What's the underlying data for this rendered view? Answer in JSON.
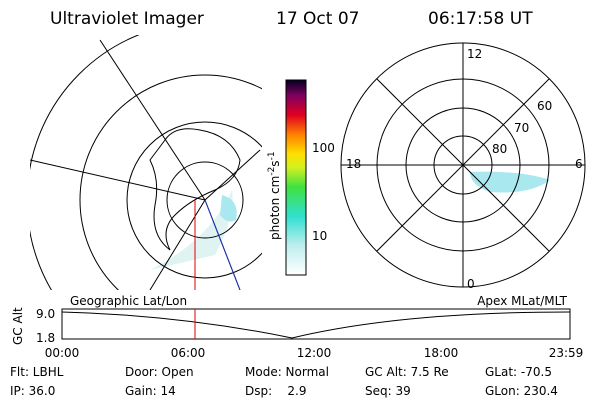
{
  "header": {
    "instrument": "Ultraviolet Imager",
    "date": "17 Oct 07",
    "time": "06:17:58 UT"
  },
  "colorbar": {
    "label_parts": [
      "photon cm",
      "-2",
      "s",
      "-1"
    ],
    "tick_labels": [
      "100",
      "10"
    ]
  },
  "polar_plot": {
    "mlt_labels": [
      "12",
      "18",
      "6",
      "0"
    ],
    "mlat_labels": [
      "60",
      "70",
      "80"
    ]
  },
  "altitude_panel": {
    "left_title": "Geographic Lat/Lon",
    "right_title": "Apex MLat/MLT",
    "y_label": "GC Alt",
    "y_labels": [
      "9.0",
      "1.8"
    ],
    "x_labels": [
      "00:00",
      "06:00",
      "12:00",
      "18:00",
      "23:59"
    ]
  },
  "footer": {
    "rows": [
      [
        "Flt: LBHL",
        "Door: Open",
        "Mode: Normal",
        "GC Alt: 7.5 Re",
        "GLat: -70.5"
      ],
      [
        "IP: 36.0",
        "Gain: 14",
        "Dsp:    2.9",
        "Seq: 39",
        "GLon: 230.4"
      ]
    ]
  }
}
